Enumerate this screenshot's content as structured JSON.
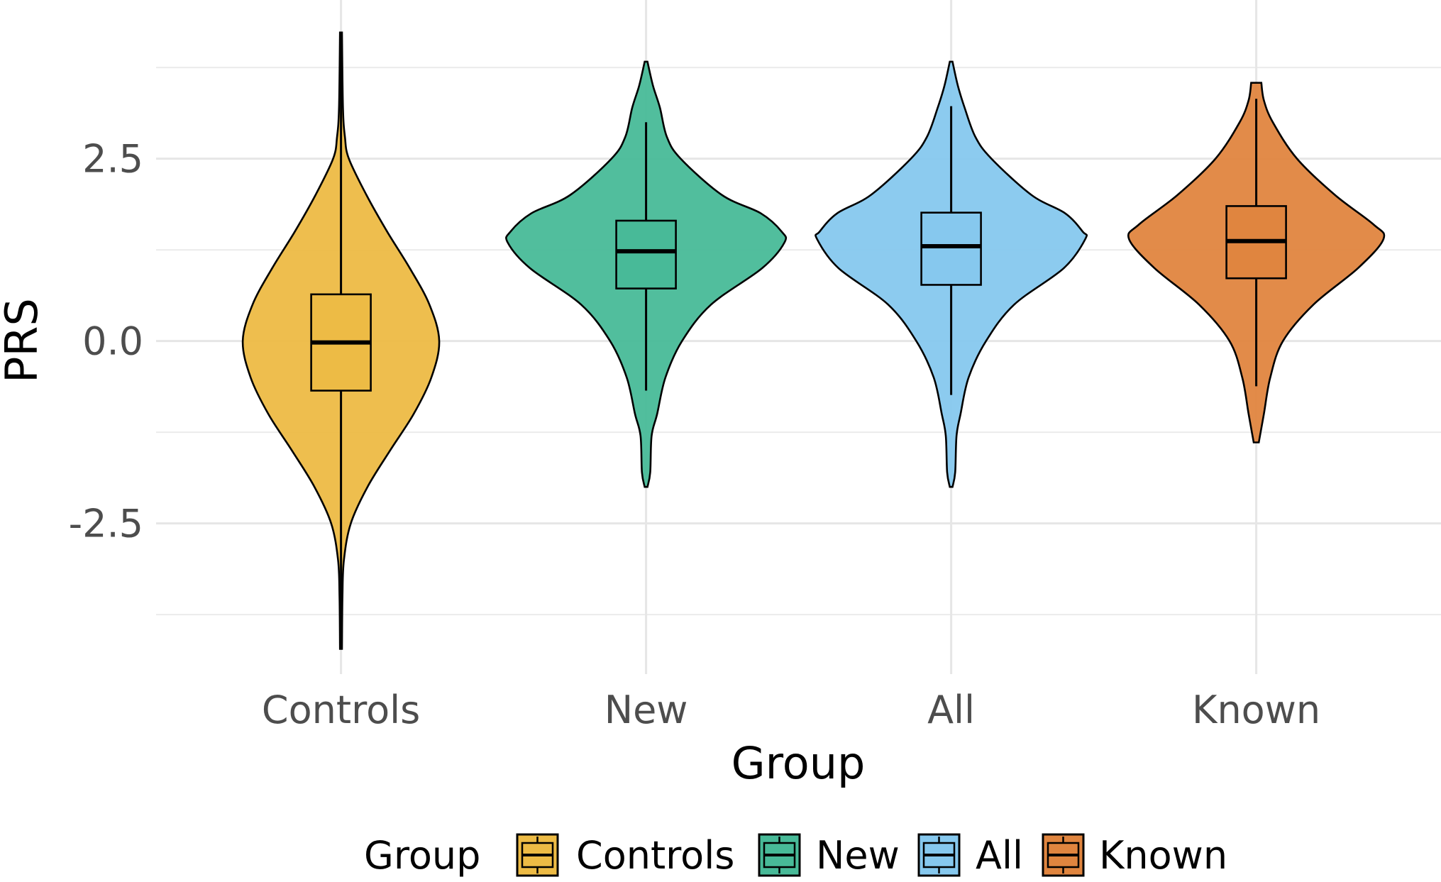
{
  "chart_data": {
    "type": "violin",
    "title": "",
    "xlabel": "Group",
    "ylabel": "PRS",
    "ylim": [
      -4.6,
      4.7
    ],
    "yticks": [
      2.5,
      0.0,
      -2.5
    ],
    "ytick_labels": [
      "2.5",
      "0.0",
      "-2.5"
    ],
    "minor_grid": [
      3.75,
      1.25,
      -1.25,
      -3.75
    ],
    "grid": true,
    "categories": [
      "Controls",
      "New",
      "All",
      "Known"
    ],
    "legend": {
      "title": "Group",
      "placement": "bottom",
      "entries": [
        "Controls",
        "New",
        "All",
        "Known"
      ]
    },
    "series": [
      {
        "name": "Controls",
        "color": "#EDBB45",
        "median": -0.02,
        "q1": -0.68,
        "q3": 0.64,
        "whisker_low": -4.22,
        "whisker_high": 4.23,
        "relative_width": 0.71,
        "density": [
          [
            4.23,
            0.01
          ],
          [
            3.2,
            0.02
          ],
          [
            2.8,
            0.04
          ],
          [
            2.5,
            0.08
          ],
          [
            2.0,
            0.26
          ],
          [
            1.5,
            0.47
          ],
          [
            1.0,
            0.7
          ],
          [
            0.5,
            0.9
          ],
          [
            0.0,
            1.0
          ],
          [
            -0.5,
            0.92
          ],
          [
            -1.0,
            0.74
          ],
          [
            -1.5,
            0.5
          ],
          [
            -2.0,
            0.27
          ],
          [
            -2.5,
            0.1
          ],
          [
            -3.0,
            0.03
          ],
          [
            -3.5,
            0.015
          ],
          [
            -4.22,
            0.01
          ]
        ]
      },
      {
        "name": "New",
        "color": "#48BA98",
        "median": 1.23,
        "q1": 0.72,
        "q3": 1.65,
        "whisker_low": -0.68,
        "whisker_high": 3.0,
        "relative_width": 1.0,
        "density": [
          [
            3.83,
            0.01
          ],
          [
            3.5,
            0.05
          ],
          [
            3.2,
            0.1
          ],
          [
            2.8,
            0.15
          ],
          [
            2.5,
            0.25
          ],
          [
            2.0,
            0.55
          ],
          [
            1.75,
            0.83
          ],
          [
            1.5,
            0.98
          ],
          [
            1.35,
            1.0
          ],
          [
            1.0,
            0.84
          ],
          [
            0.5,
            0.47
          ],
          [
            0.0,
            0.26
          ],
          [
            -0.5,
            0.14
          ],
          [
            -1.0,
            0.08
          ],
          [
            -1.3,
            0.04
          ],
          [
            -1.8,
            0.03
          ],
          [
            -2.0,
            0.01
          ]
        ]
      },
      {
        "name": "All",
        "color": "#86C8EE",
        "median": 1.3,
        "q1": 0.77,
        "q3": 1.76,
        "whisker_low": -0.74,
        "whisker_high": 3.22,
        "relative_width": 0.97,
        "density": [
          [
            3.83,
            0.01
          ],
          [
            3.5,
            0.05
          ],
          [
            3.2,
            0.1
          ],
          [
            2.8,
            0.18
          ],
          [
            2.5,
            0.3
          ],
          [
            2.0,
            0.6
          ],
          [
            1.75,
            0.85
          ],
          [
            1.5,
            0.98
          ],
          [
            1.4,
            1.0
          ],
          [
            1.0,
            0.84
          ],
          [
            0.5,
            0.47
          ],
          [
            0.0,
            0.26
          ],
          [
            -0.5,
            0.13
          ],
          [
            -1.0,
            0.07
          ],
          [
            -1.3,
            0.04
          ],
          [
            -1.8,
            0.03
          ],
          [
            -2.0,
            0.01
          ]
        ]
      },
      {
        "name": "Known",
        "color": "#E0853F",
        "median": 1.37,
        "q1": 0.86,
        "q3": 1.85,
        "whisker_low": -0.62,
        "whisker_high": 3.32,
        "relative_width": 0.92,
        "density": [
          [
            3.54,
            0.04
          ],
          [
            3.3,
            0.06
          ],
          [
            3.0,
            0.13
          ],
          [
            2.5,
            0.32
          ],
          [
            2.0,
            0.62
          ],
          [
            1.6,
            0.92
          ],
          [
            1.4,
            1.0
          ],
          [
            1.0,
            0.8
          ],
          [
            0.5,
            0.45
          ],
          [
            0.0,
            0.21
          ],
          [
            -0.5,
            0.11
          ],
          [
            -1.0,
            0.06
          ],
          [
            -1.39,
            0.02
          ]
        ]
      }
    ]
  }
}
